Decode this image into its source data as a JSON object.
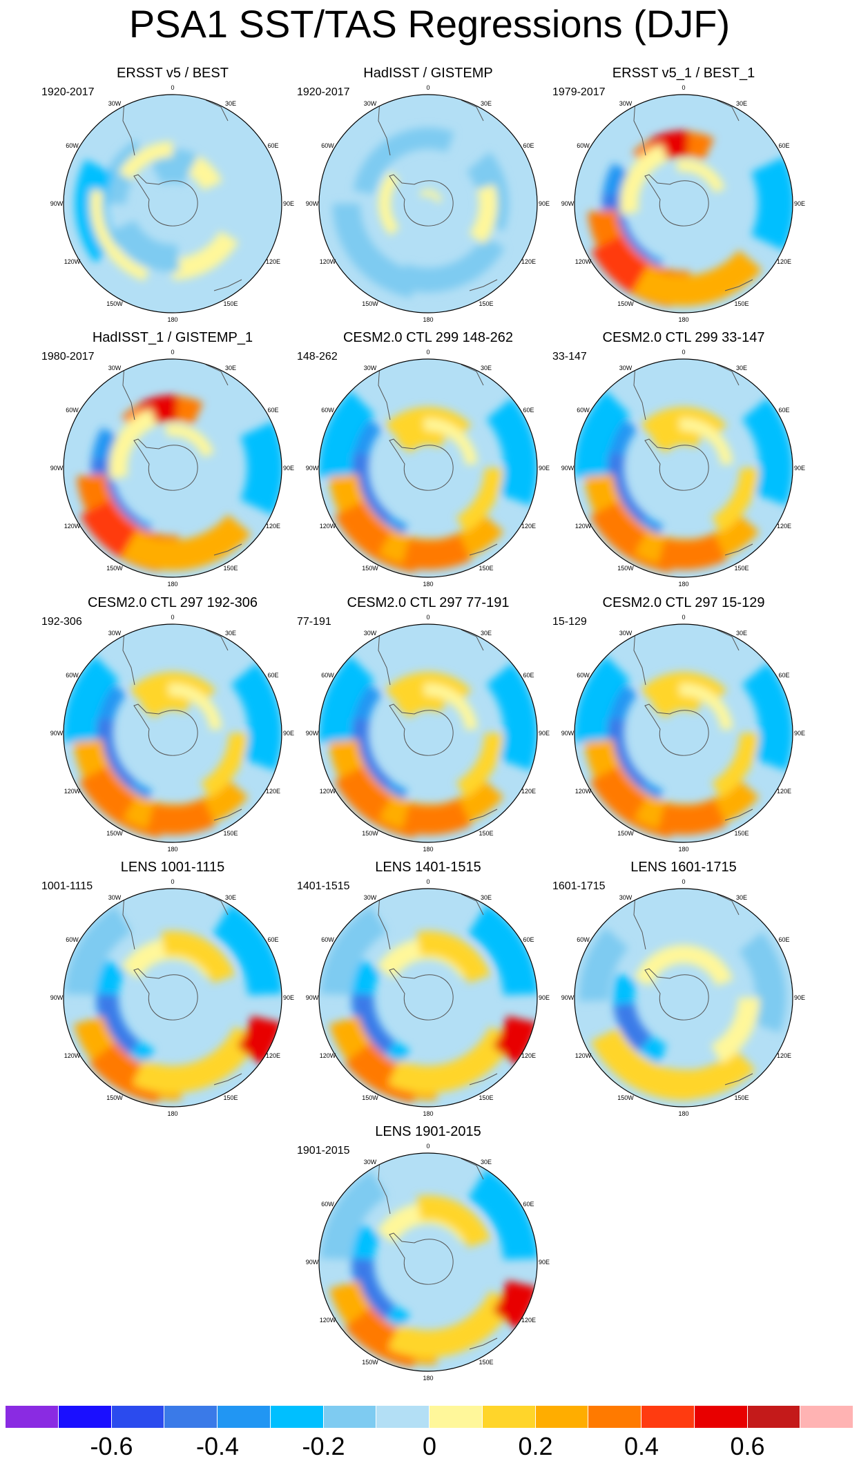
{
  "title": "PSA1 SST/TAS Regressions (DJF)",
  "longitude_labels": [
    "0",
    "30E",
    "60E",
    "90E",
    "120E",
    "150E",
    "180",
    "150W",
    "120W",
    "90W",
    "60W",
    "30W"
  ],
  "colorbar": {
    "colors": [
      "#8a2be2",
      "#1a0fff",
      "#2b4bee",
      "#3a7ae8",
      "#2196f3",
      "#00bfff",
      "#7ecbf1",
      "#b3dff5",
      "#fff79a",
      "#ffd52a",
      "#ffad00",
      "#ff7a00",
      "#ff3b10",
      "#e80000",
      "#c41a1a",
      "#ffb3b3"
    ],
    "tick_labels": [
      "-0.6",
      "-0.4",
      "-0.2",
      "0",
      "0.2",
      "0.4",
      "0.6"
    ]
  },
  "panels": [
    {
      "title": "ERSST v5 / BEST",
      "period": "1920-2017",
      "pattern": "obs-weak"
    },
    {
      "title": "HadISST / GISTEMP",
      "period": "1920-2017",
      "pattern": "obs-neg"
    },
    {
      "title": "ERSST v5_1 / BEST_1",
      "period": "1979-2017",
      "pattern": "strong"
    },
    {
      "title": "HadISST_1 / GISTEMP_1",
      "period": "1980-2017",
      "pattern": "strong"
    },
    {
      "title": "CESM2.0 CTL 299 148-262",
      "period": "148-262",
      "pattern": "model"
    },
    {
      "title": "CESM2.0 CTL 299 33-147",
      "period": "33-147",
      "pattern": "model"
    },
    {
      "title": "CESM2.0 CTL 297 192-306",
      "period": "192-306",
      "pattern": "model"
    },
    {
      "title": "CESM2.0 CTL 297 77-191",
      "period": "77-191",
      "pattern": "model"
    },
    {
      "title": "CESM2.0 CTL 297 15-129",
      "period": "15-129",
      "pattern": "model"
    },
    {
      "title": "LENS 1001-1115",
      "period": "1001-1115",
      "pattern": "lens"
    },
    {
      "title": "LENS 1401-1515",
      "period": "1401-1515",
      "pattern": "lens"
    },
    {
      "title": "LENS 1601-1715",
      "period": "1601-1715",
      "pattern": "lens-weak"
    },
    {
      "title": "LENS 1901-2015",
      "period": "1901-2015",
      "pattern": "lens"
    }
  ]
}
